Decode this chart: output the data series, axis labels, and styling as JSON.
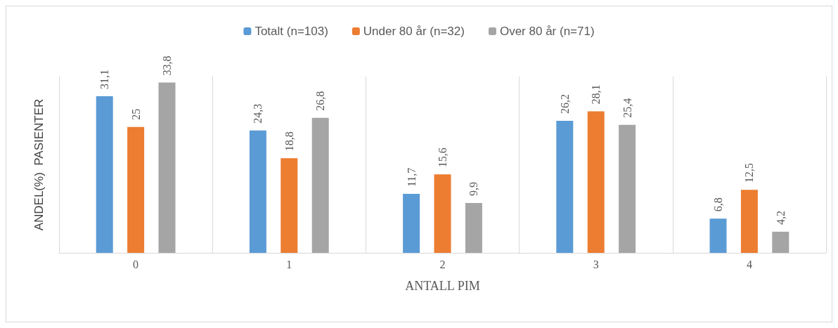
{
  "chart_data": {
    "type": "bar",
    "xlabel": "ANTALL PIM",
    "ylabel": "ANDEL(%)  PASIENTER",
    "categories": [
      "0",
      "1",
      "2",
      "3",
      "4"
    ],
    "series": [
      {
        "name": "Totalt (n=103)",
        "color": "#5b9bd5",
        "values": [
          31.1,
          24.3,
          11.7,
          26.2,
          6.8
        ],
        "value_labels": [
          "31,1",
          "24,3",
          "11,7",
          "26,2",
          "6,8"
        ]
      },
      {
        "name": "Under 80 år (n=32)",
        "color": "#ed7d31",
        "values": [
          25,
          18.8,
          15.6,
          28.1,
          12.5
        ],
        "value_labels": [
          "25",
          "18,8",
          "15,6",
          "28,1",
          "12,5"
        ]
      },
      {
        "name": "Over 80 år (n=71)",
        "color": "#a5a5a5",
        "values": [
          33.8,
          26.8,
          9.9,
          25.4,
          4.2
        ],
        "value_labels": [
          "33,8",
          "26,8",
          "9,9",
          "25,4",
          "4,2"
        ]
      }
    ],
    "grid": "x",
    "legend": "top"
  }
}
